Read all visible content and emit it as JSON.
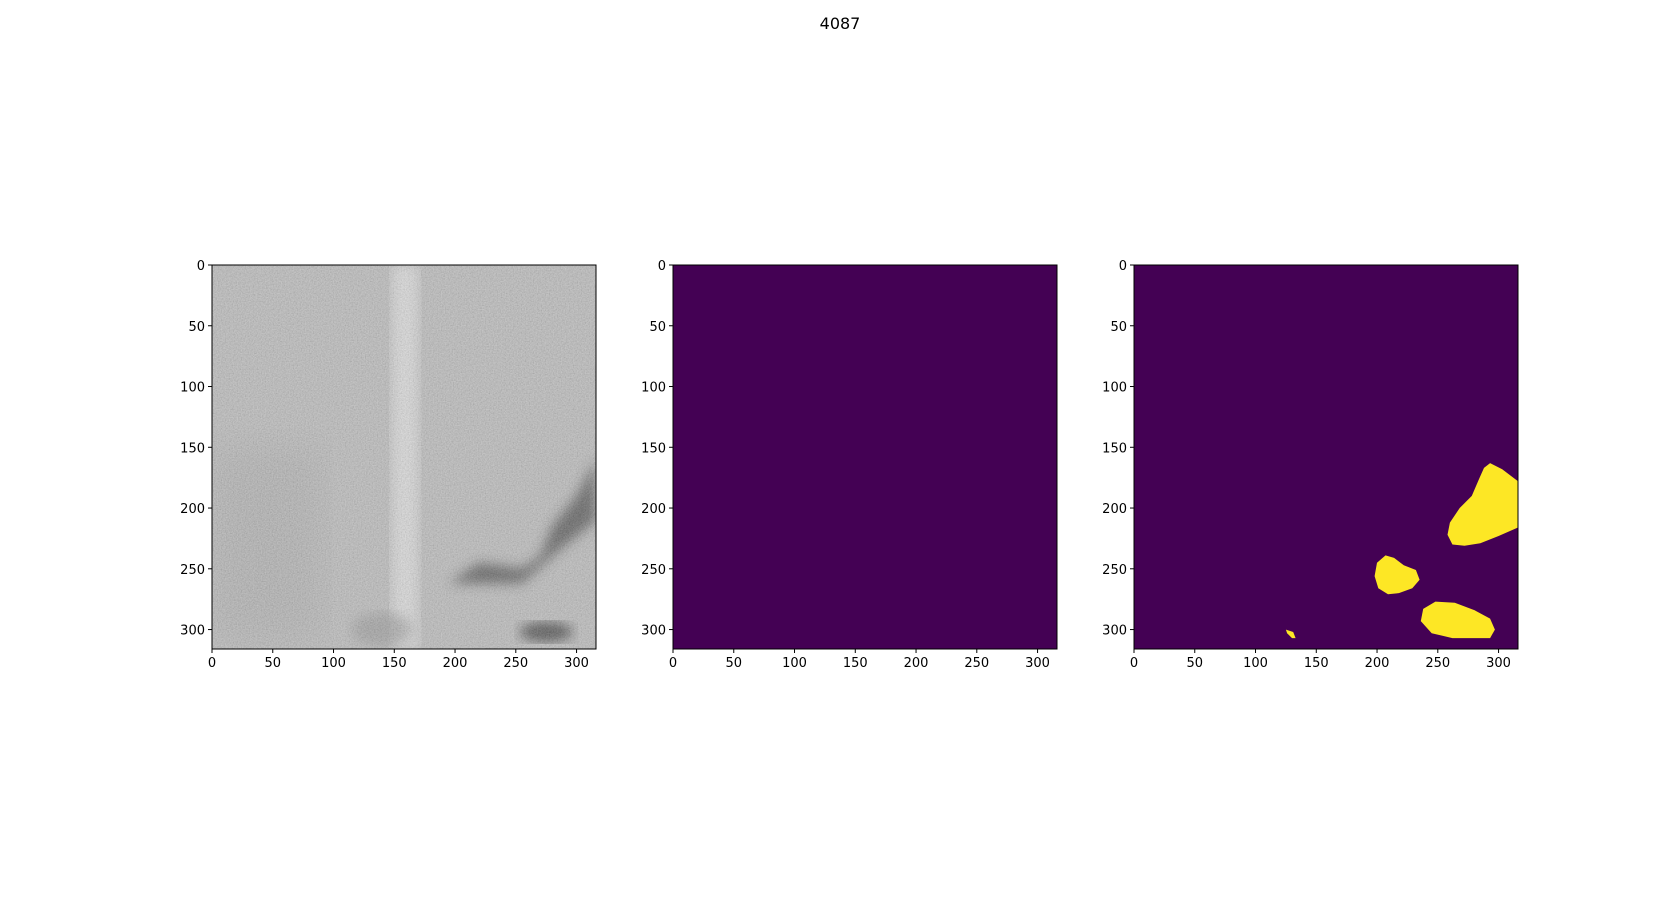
{
  "title": "4087",
  "colors": {
    "background": "#ffffff",
    "mask_background": "#440154",
    "mask_foreground": "#fde725",
    "axes": "#000000"
  },
  "panels": [
    {
      "name": "input-image",
      "kind": "grayscale-image",
      "image_size": [
        316,
        316
      ],
      "xlim": [
        0,
        316
      ],
      "ylim": [
        316,
        0
      ],
      "xticks": [
        0,
        50,
        100,
        150,
        200,
        250,
        300
      ],
      "yticks": [
        0,
        50,
        100,
        150,
        200,
        250,
        300
      ]
    },
    {
      "name": "ground-truth-mask",
      "kind": "mask",
      "image_size": [
        316,
        316
      ],
      "xlim": [
        0,
        316
      ],
      "ylim": [
        316,
        0
      ],
      "xticks": [
        0,
        50,
        100,
        150,
        200,
        250,
        300
      ],
      "yticks": [
        0,
        50,
        100,
        150,
        200,
        250,
        300
      ],
      "regions": []
    },
    {
      "name": "predicted-mask",
      "kind": "mask",
      "image_size": [
        316,
        316
      ],
      "xlim": [
        0,
        316
      ],
      "ylim": [
        316,
        0
      ],
      "xticks": [
        0,
        50,
        100,
        150,
        200,
        250,
        300
      ],
      "yticks": [
        0,
        50,
        100,
        150,
        200,
        250,
        300
      ],
      "regions": [
        {
          "name": "blob-upper-right",
          "points": [
            [
              293,
              163
            ],
            [
              303,
              168
            ],
            [
              316,
              178
            ],
            [
              316,
              216
            ],
            [
              300,
              223
            ],
            [
              285,
              229
            ],
            [
              272,
              231
            ],
            [
              262,
              230
            ],
            [
              258,
              222
            ],
            [
              260,
              212
            ],
            [
              268,
              200
            ],
            [
              278,
              190
            ],
            [
              284,
              176
            ],
            [
              288,
              167
            ]
          ]
        },
        {
          "name": "blob-middle",
          "points": [
            [
              207,
              239
            ],
            [
              214,
              241
            ],
            [
              222,
              247
            ],
            [
              232,
              251
            ],
            [
              235,
              259
            ],
            [
              229,
              266
            ],
            [
              218,
              270
            ],
            [
              209,
              271
            ],
            [
              201,
              266
            ],
            [
              198,
              256
            ],
            [
              200,
              245
            ]
          ]
        },
        {
          "name": "blob-bottom",
          "points": [
            [
              248,
              277
            ],
            [
              264,
              278
            ],
            [
              280,
              284
            ],
            [
              293,
              291
            ],
            [
              297,
              300
            ],
            [
              293,
              307
            ],
            [
              280,
              307
            ],
            [
              262,
              307
            ],
            [
              245,
              303
            ],
            [
              236,
              293
            ],
            [
              238,
              283
            ]
          ]
        },
        {
          "name": "blob-small",
          "points": [
            [
              125,
              300
            ],
            [
              131,
              302
            ],
            [
              133,
              307
            ],
            [
              130,
              307
            ],
            [
              126,
              303
            ]
          ]
        }
      ]
    }
  ]
}
